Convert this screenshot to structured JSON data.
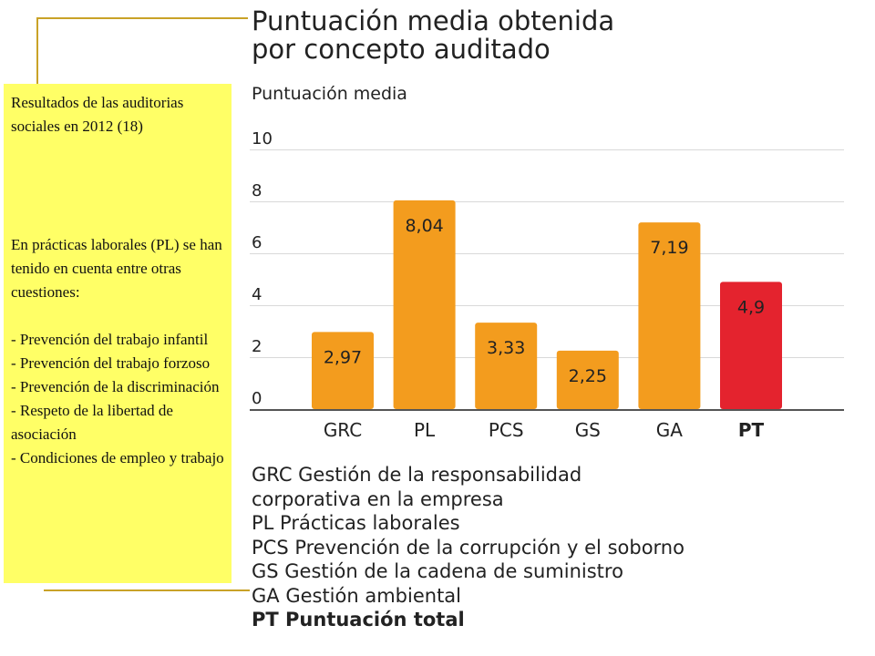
{
  "sidebar": {
    "heading": "Resultados de las auditorias sociales en 2012 (18)",
    "intro": "En prácticas laborales (PL) se han tenido en cuenta entre otras cuestiones:",
    "items": [
      "- Prevención del trabajo infantil",
      "- Prevención del trabajo forzoso",
      "- Prevención de la discriminación",
      "- Respeto de la libertad de asociación",
      "- Condiciones de empleo y trabajo"
    ]
  },
  "chart_data": {
    "type": "bar",
    "title": "Puntuación media obtenida por concepto auditado",
    "title_lines": [
      "Puntuación media obtenida",
      "por concepto auditado"
    ],
    "ylabel": "Puntuación media",
    "xlabel": "",
    "ylim": [
      0,
      10
    ],
    "yticks": [
      "0",
      "2",
      "4",
      "6",
      "8",
      "10"
    ],
    "categories": [
      "GRC",
      "PL",
      "PCS",
      "GS",
      "GA",
      "PT"
    ],
    "values": [
      2.97,
      8.04,
      3.33,
      2.25,
      7.19,
      4.9
    ],
    "value_labels": [
      "2,97",
      "8,04",
      "3,33",
      "2,25",
      "7,19",
      "4,9"
    ],
    "colors": [
      "#f39c1e",
      "#f39c1e",
      "#f39c1e",
      "#f39c1e",
      "#f39c1e",
      "#e4232e"
    ],
    "bold_categories": [
      "PT"
    ],
    "grid": true,
    "legend": [
      {
        "lines": [
          "GRC Gestión de la responsabilidad",
          "corporativa en la empresa"
        ],
        "bold": false
      },
      {
        "lines": [
          "PL Prácticas laborales"
        ],
        "bold": false
      },
      {
        "lines": [
          "PCS Prevención de la corrupción y el soborno"
        ],
        "bold": false
      },
      {
        "lines": [
          "GS Gestión de la cadena de suministro"
        ],
        "bold": false
      },
      {
        "lines": [
          "GA Gestión ambiental"
        ],
        "bold": false
      },
      {
        "lines": [
          "PT Puntuación total"
        ],
        "bold": true
      }
    ]
  }
}
